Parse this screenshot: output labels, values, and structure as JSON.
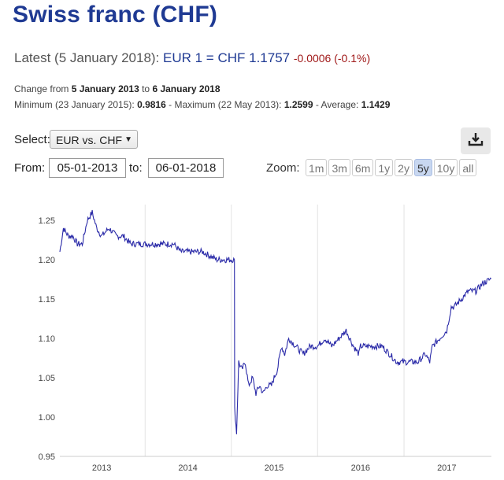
{
  "page": {
    "title": "Swiss franc (CHF)",
    "latest_prefix": "Latest (5 January 2018): ",
    "latest_rate": "EUR 1 = CHF 1.1757",
    "latest_change": "-0.0006 (-0.1%)",
    "change_prefix": "Change from ",
    "change_from": "5 January 2013",
    "change_mid": " to ",
    "change_to": "6 January 2018",
    "min_label": "Minimum (23 January 2015): ",
    "min_value": "0.9816",
    "max_label": " - Maximum (22 May 2013): ",
    "max_value": "1.2599",
    "avg_label": " - Average: ",
    "avg_value": "1.1429"
  },
  "controls": {
    "select_label": "Select:",
    "select_value": "EUR vs. CHF",
    "from_label": "From:",
    "from_value": "05-01-2013",
    "to_label": "to:",
    "to_value": "06-01-2018",
    "zoom_label": "Zoom:",
    "zoom_options": [
      "1m",
      "3m",
      "6m",
      "1y",
      "2y",
      "5y",
      "10y",
      "all"
    ],
    "zoom_active": "5y",
    "download_icon": "download-icon"
  },
  "colors": {
    "title": "#1f3a93",
    "line": "#2a2aa8",
    "change_negative": "#a01818",
    "zoom_active_bg": "#c8d7f0"
  },
  "chart_data": {
    "type": "line",
    "title": "",
    "xlabel": "",
    "ylabel": "",
    "ylim": [
      0.95,
      1.27
    ],
    "yticks": [
      "0.95",
      "1.00",
      "1.05",
      "1.10",
      "1.15",
      "1.20",
      "1.25"
    ],
    "xticks": [
      "2013",
      "2014",
      "2015",
      "2016",
      "2017"
    ],
    "grid": "vertical year lines",
    "series": [
      {
        "values_x": [
          "2013-01-05",
          "2013-01-20",
          "2013-02-10",
          "2013-03-01",
          "2013-03-20",
          "2013-04-10",
          "2013-05-01",
          "2013-05-22",
          "2013-06-10",
          "2013-07-01",
          "2013-08-01",
          "2013-09-01",
          "2013-10-01",
          "2013-11-01",
          "2013-12-01",
          "2014-01-01",
          "2014-02-01",
          "2014-03-01",
          "2014-04-01",
          "2014-05-01",
          "2014-06-01",
          "2014-07-01",
          "2014-08-01",
          "2014-09-01",
          "2014-10-01",
          "2014-11-01",
          "2014-12-01",
          "2015-01-14",
          "2015-01-15",
          "2015-01-23",
          "2015-02-01",
          "2015-02-15",
          "2015-03-01",
          "2015-03-15",
          "2015-04-01",
          "2015-04-15",
          "2015-05-01",
          "2015-05-15",
          "2015-06-01",
          "2015-06-20",
          "2015-07-01",
          "2015-07-15",
          "2015-08-01",
          "2015-08-15",
          "2015-09-01",
          "2015-10-01",
          "2015-11-01",
          "2015-12-01",
          "2016-01-01",
          "2016-02-01",
          "2016-03-01",
          "2016-04-01",
          "2016-05-01",
          "2016-06-01",
          "2016-06-24",
          "2016-07-01",
          "2016-08-01",
          "2016-09-01",
          "2016-10-01",
          "2016-11-01",
          "2016-12-01",
          "2017-01-01",
          "2017-02-01",
          "2017-03-01",
          "2017-04-01",
          "2017-04-20",
          "2017-05-01",
          "2017-06-01",
          "2017-07-01",
          "2017-07-20",
          "2017-08-01",
          "2017-09-01",
          "2017-10-01",
          "2017-11-01",
          "2017-12-01",
          "2018-01-05"
        ],
        "values_y": [
          1.21,
          1.24,
          1.23,
          1.23,
          1.22,
          1.22,
          1.25,
          1.26,
          1.24,
          1.23,
          1.24,
          1.23,
          1.23,
          1.22,
          1.22,
          1.22,
          1.22,
          1.22,
          1.22,
          1.22,
          1.21,
          1.21,
          1.21,
          1.21,
          1.205,
          1.2,
          1.2,
          1.2,
          1.01,
          0.98,
          1.07,
          1.06,
          1.07,
          1.04,
          1.05,
          1.03,
          1.04,
          1.03,
          1.04,
          1.04,
          1.05,
          1.06,
          1.09,
          1.08,
          1.1,
          1.09,
          1.08,
          1.09,
          1.09,
          1.1,
          1.09,
          1.1,
          1.11,
          1.09,
          1.08,
          1.09,
          1.09,
          1.09,
          1.09,
          1.08,
          1.07,
          1.07,
          1.07,
          1.07,
          1.08,
          1.07,
          1.09,
          1.1,
          1.11,
          1.14,
          1.14,
          1.15,
          1.16,
          1.16,
          1.17,
          1.1757
        ]
      }
    ]
  }
}
